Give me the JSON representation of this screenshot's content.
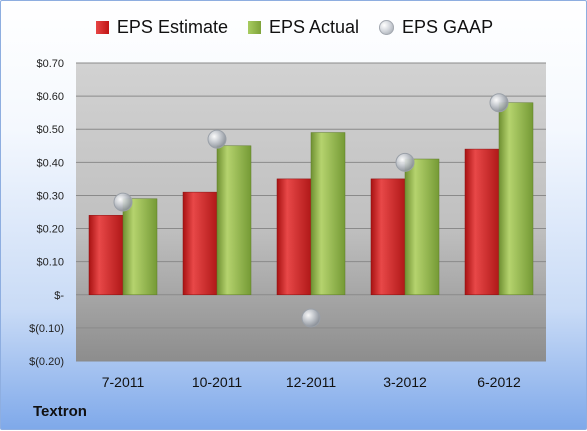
{
  "company": "Textron",
  "legend": {
    "estimate": "EPS Estimate",
    "actual": "EPS Actual",
    "gaap": "EPS GAAP"
  },
  "chart_data": {
    "type": "bar",
    "categories": [
      "7-2011",
      "10-2011",
      "12-2011",
      "3-2012",
      "6-2012"
    ],
    "series": [
      {
        "name": "EPS Estimate",
        "kind": "bar",
        "color": "#c8201f",
        "values": [
          0.24,
          0.31,
          0.35,
          0.35,
          0.44
        ]
      },
      {
        "name": "EPS Actual",
        "kind": "bar",
        "color": "#8db043",
        "values": [
          0.29,
          0.45,
          0.49,
          0.41,
          0.58
        ]
      },
      {
        "name": "EPS GAAP",
        "kind": "marker",
        "color": "#b4b9c0",
        "values": [
          0.28,
          0.47,
          -0.07,
          0.4,
          0.58
        ]
      }
    ],
    "ylim": [
      -0.2,
      0.7
    ],
    "yticks": [
      0.7,
      0.6,
      0.5,
      0.4,
      0.3,
      0.2,
      0.1,
      0,
      -0.1,
      -0.2
    ],
    "ytick_labels": [
      "$0.70",
      "$0.60",
      "$0.50",
      "$0.40",
      "$0.30",
      "$0.20",
      "$0.10",
      "$-",
      "$(0.10)",
      "$(0.20)"
    ],
    "grid": true,
    "legend_position": "top",
    "title": "",
    "xlabel": "",
    "ylabel": ""
  }
}
